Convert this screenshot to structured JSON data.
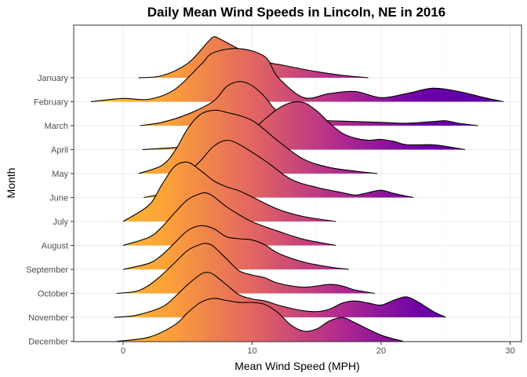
{
  "chart_data": {
    "type": "ridgeline",
    "title": "Daily Mean Wind Speeds in Lincoln, NE in 2016",
    "xlabel": "Mean Wind Speed (MPH)",
    "ylabel": "Month",
    "xlim": [
      -4,
      31
    ],
    "x_ticks": [
      0,
      10,
      20,
      30
    ],
    "grid": true,
    "gradient_colors": [
      "#fdca26",
      "#fb9f3a",
      "#e16462",
      "#b12a90",
      "#6a00a8",
      "#5c01a6"
    ],
    "gradient_range": [
      -3,
      30
    ],
    "categories": [
      "January",
      "February",
      "March",
      "April",
      "May",
      "June",
      "July",
      "August",
      "September",
      "October",
      "November",
      "December"
    ],
    "series": [
      {
        "name": "January",
        "x": [
          1.2,
          3,
          5,
          6.5,
          7,
          7.5,
          9,
          11,
          12.5,
          15,
          17,
          19
        ],
        "density": [
          0,
          0.05,
          0.35,
          0.85,
          1.0,
          0.95,
          0.7,
          0.4,
          0.3,
          0.15,
          0.06,
          0
        ]
      },
      {
        "name": "February",
        "x": [
          -2.5,
          0,
          2,
          4,
          6,
          7,
          9,
          11,
          12,
          14,
          16,
          18,
          20,
          22,
          24,
          26,
          28,
          29.5
        ],
        "density": [
          0,
          0.08,
          0.06,
          0.3,
          0.9,
          1.2,
          1.3,
          1.1,
          0.6,
          0.1,
          0.2,
          0.25,
          0.1,
          0.2,
          0.33,
          0.25,
          0.1,
          0
        ]
      },
      {
        "name": "March",
        "x": [
          1.3,
          3,
          5,
          7,
          8,
          9,
          10,
          11,
          12,
          14,
          16,
          18,
          20,
          22,
          24,
          25,
          26,
          27.5
        ],
        "density": [
          0,
          0.08,
          0.28,
          0.6,
          0.95,
          1.08,
          0.98,
          0.7,
          0.35,
          0.15,
          0.12,
          0.1,
          0.08,
          0.06,
          0.1,
          0.12,
          0.06,
          0
        ]
      },
      {
        "name": "April",
        "x": [
          1.5,
          5,
          8,
          10,
          11,
          12,
          13,
          14,
          15,
          16,
          17,
          18,
          19,
          20,
          21,
          22,
          24,
          25,
          26.5
        ],
        "density": [
          0,
          0.08,
          0.25,
          0.5,
          0.75,
          1.0,
          1.15,
          1.15,
          0.95,
          0.65,
          0.4,
          0.28,
          0.23,
          0.25,
          0.2,
          0.12,
          0.12,
          0.08,
          0
        ]
      },
      {
        "name": "May",
        "x": [
          1.2,
          3,
          4,
          5,
          6,
          7,
          8,
          10,
          12,
          14,
          16,
          18,
          19.7
        ],
        "density": [
          0,
          0.2,
          0.55,
          1.1,
          1.45,
          1.55,
          1.5,
          1.3,
          0.8,
          0.35,
          0.15,
          0.06,
          0
        ]
      },
      {
        "name": "June",
        "x": [
          1.6,
          3,
          4,
          5,
          6,
          7,
          8,
          9,
          11,
          13,
          15,
          17,
          18,
          19,
          20,
          21,
          22.5
        ],
        "density": [
          0,
          0.1,
          0.3,
          0.6,
          0.9,
          1.25,
          1.4,
          1.3,
          0.9,
          0.45,
          0.25,
          0.12,
          0.06,
          0.12,
          0.18,
          0.1,
          0
        ]
      },
      {
        "name": "July",
        "x": [
          0,
          2,
          3,
          4,
          5,
          6,
          7,
          8,
          9,
          10,
          12,
          14,
          16.5
        ],
        "density": [
          0,
          0.4,
          0.9,
          1.35,
          1.45,
          1.25,
          1.0,
          0.85,
          0.75,
          0.6,
          0.3,
          0.12,
          0
        ]
      },
      {
        "name": "August",
        "x": [
          0,
          2,
          3,
          4,
          5,
          6,
          6.5,
          7,
          8,
          9,
          10,
          12,
          14,
          16.5
        ],
        "density": [
          0,
          0.2,
          0.45,
          0.8,
          1.12,
          1.27,
          1.28,
          1.2,
          0.95,
          0.75,
          0.58,
          0.35,
          0.15,
          0
        ]
      },
      {
        "name": "September",
        "x": [
          0,
          2,
          3,
          4,
          5,
          6,
          7,
          8,
          9,
          10,
          11,
          12,
          14,
          16,
          17.5
        ],
        "density": [
          0,
          0.15,
          0.35,
          0.65,
          0.95,
          1.07,
          1.0,
          0.8,
          0.75,
          0.72,
          0.6,
          0.4,
          0.18,
          0.06,
          0
        ]
      },
      {
        "name": "October",
        "x": [
          -0.5,
          1,
          2,
          3,
          4,
          5,
          6,
          6.5,
          7,
          8,
          9,
          10,
          11,
          12,
          14,
          16,
          17,
          18,
          19.5
        ],
        "density": [
          0,
          0.05,
          0.2,
          0.45,
          0.75,
          1.05,
          1.2,
          1.22,
          1.15,
          0.85,
          0.55,
          0.45,
          0.38,
          0.25,
          0.15,
          0.22,
          0.18,
          0.08,
          0
        ]
      },
      {
        "name": "November",
        "x": [
          -0.7,
          1,
          3,
          4,
          5,
          6,
          6.5,
          7,
          8,
          9,
          10,
          11,
          12,
          13,
          14,
          15,
          16,
          17,
          18,
          19,
          20,
          21,
          22,
          23,
          24,
          25
        ],
        "density": [
          0,
          0.05,
          0.25,
          0.5,
          0.8,
          1.05,
          1.1,
          1.05,
          0.8,
          0.55,
          0.45,
          0.4,
          0.3,
          0.22,
          0.16,
          0.14,
          0.2,
          0.35,
          0.4,
          0.35,
          0.3,
          0.42,
          0.5,
          0.35,
          0.15,
          0
        ]
      },
      {
        "name": "December",
        "x": [
          -0.5,
          2,
          4,
          5,
          6,
          7,
          8,
          9,
          10,
          11,
          12,
          13,
          14,
          15,
          16,
          17,
          18,
          20,
          21.7
        ],
        "density": [
          0,
          0.1,
          0.4,
          0.7,
          0.95,
          1.05,
          1.0,
          0.95,
          0.95,
          0.9,
          0.7,
          0.4,
          0.25,
          0.3,
          0.5,
          0.58,
          0.45,
          0.15,
          0
        ]
      }
    ]
  }
}
